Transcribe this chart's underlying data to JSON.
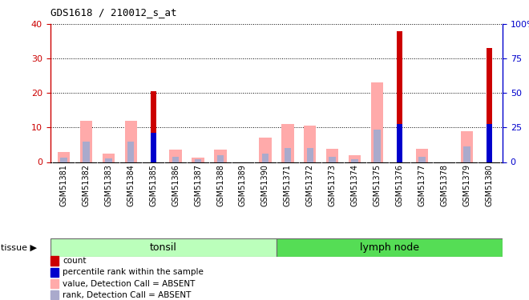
{
  "title": "GDS1618 / 210012_s_at",
  "samples": [
    "GSM51381",
    "GSM51382",
    "GSM51383",
    "GSM51384",
    "GSM51385",
    "GSM51386",
    "GSM51387",
    "GSM51388",
    "GSM51389",
    "GSM51390",
    "GSM51371",
    "GSM51372",
    "GSM51373",
    "GSM51374",
    "GSM51375",
    "GSM51376",
    "GSM51377",
    "GSM51378",
    "GSM51379",
    "GSM51380"
  ],
  "count_values": [
    0,
    0,
    0,
    0,
    20.5,
    0,
    0,
    0,
    0,
    0,
    0,
    0,
    0,
    0,
    0,
    38,
    0,
    0,
    0,
    33
  ],
  "rank_values": [
    0,
    0,
    0,
    0,
    8.5,
    0,
    0,
    0,
    0,
    0,
    0,
    0,
    0,
    0,
    0,
    11,
    0,
    0,
    0,
    11
  ],
  "value_absent": [
    3,
    12,
    2.5,
    12,
    0,
    3.5,
    1.2,
    3.5,
    0,
    7,
    11,
    10.5,
    3.8,
    2,
    23,
    0,
    3.8,
    0,
    9,
    0
  ],
  "rank_absent": [
    1.2,
    6,
    1,
    6,
    0,
    1.5,
    0.7,
    2,
    0,
    2.5,
    4,
    4,
    1.5,
    0.8,
    9.5,
    0,
    1.5,
    0,
    4.5,
    0
  ],
  "tonsil_count": 10,
  "lymph_count": 10,
  "ylim_left": [
    0,
    40
  ],
  "ylim_right": [
    0,
    100
  ],
  "yticks_left": [
    0,
    10,
    20,
    30,
    40
  ],
  "yticks_right": [
    0,
    25,
    50,
    75,
    100
  ],
  "color_count": "#cc0000",
  "color_rank": "#0000cc",
  "color_value_absent": "#ffaaaa",
  "color_rank_absent": "#aaaacc",
  "color_tonsil_light": "#bbffbb",
  "color_lymph": "#55dd55",
  "color_xbg": "#d8d8d8",
  "tissue_label": "tissue",
  "tonsil_label": "tonsil",
  "lymph_label": "lymph node",
  "legend_items": [
    {
      "color": "#cc0000",
      "label": "count"
    },
    {
      "color": "#0000cc",
      "label": "percentile rank within the sample"
    },
    {
      "color": "#ffaaaa",
      "label": "value, Detection Call = ABSENT"
    },
    {
      "color": "#aaaacc",
      "label": "rank, Detection Call = ABSENT"
    }
  ],
  "bar_width": 0.55,
  "count_bar_width": 0.25
}
